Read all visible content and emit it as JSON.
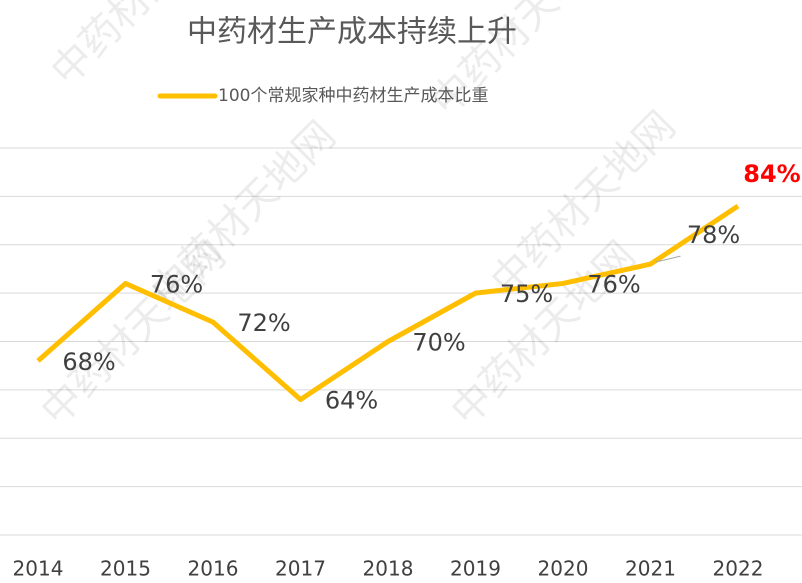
{
  "chart_data": {
    "type": "line",
    "title": "中药材生产成本持续上升",
    "watermark": "中药材天地网",
    "categories": [
      "2014",
      "2015",
      "2016",
      "2017",
      "2018",
      "2019",
      "2020",
      "2021",
      "2022"
    ],
    "series": [
      {
        "name": "100个常规家种中药材生产成本比重",
        "color": "#FFBF00",
        "values": [
          68,
          76,
          72,
          64,
          70,
          75,
          76,
          78,
          84
        ],
        "value_labels": [
          "68%",
          "76%",
          "72%",
          "64%",
          "70%",
          "75%",
          "76%",
          "78%",
          "84%"
        ]
      }
    ],
    "ylim": [
      50,
      90
    ],
    "yticks": [
      50,
      55,
      60,
      65,
      70,
      75,
      80,
      85,
      90
    ],
    "grid": true,
    "legend": "top"
  }
}
